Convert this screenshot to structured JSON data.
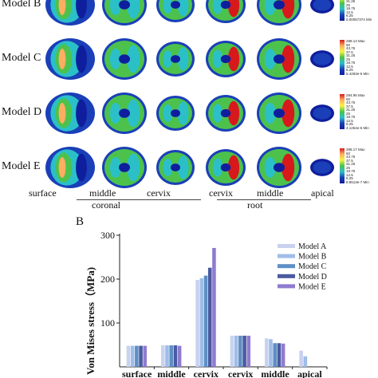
{
  "panel_a": {
    "rows": [
      {
        "label": "Model B",
        "max": "",
        "min": "0.00057374 Min"
      },
      {
        "label": "Model C",
        "max": "288.14 Max",
        "min": "5.4283e-5 Min"
      },
      {
        "label": "Model D",
        "max": "284.95 Max",
        "min": "4.1254e-6 Min"
      },
      {
        "label": "Model E",
        "max": "288.17 Max",
        "min": "8.8513e-7 Min"
      }
    ],
    "scale_ticks": [
      "50",
      "43.75",
      "37.5",
      "31.25",
      "25",
      "18.75",
      "12.5",
      "6.25"
    ],
    "columns": [
      "surface",
      "middle",
      "cervix",
      "cervix",
      "middle",
      "apical"
    ],
    "groups": [
      "coronal",
      "root"
    ],
    "colors": {
      "max": "#d7191c",
      "mid": "#fdae61",
      "green": "#4cc24c",
      "cyan": "#2bc0c8",
      "blue": "#1a3fb8",
      "navy": "#0f1e9c"
    }
  },
  "panel_b": {
    "label": "B"
  },
  "chart_data": {
    "type": "bar",
    "categories": [
      "surface",
      "middle",
      "cervix",
      "cervix",
      "middle",
      "apical"
    ],
    "series": [
      {
        "name": "Model A",
        "color": "#c8d2f0",
        "values": [
          48,
          49,
          198,
          71,
          65,
          37
        ]
      },
      {
        "name": "Model B",
        "color": "#9fbde8",
        "values": [
          48,
          49,
          202,
          71,
          63,
          24
        ]
      },
      {
        "name": "Model C",
        "color": "#5e8fc4",
        "values": [
          48,
          49,
          208,
          71,
          54,
          0
        ]
      },
      {
        "name": "Model D",
        "color": "#4a5aa0",
        "values": [
          48,
          49,
          226,
          71,
          54,
          0
        ]
      },
      {
        "name": "Model E",
        "color": "#8f7cd0",
        "values": [
          48,
          48,
          271,
          71,
          53,
          0
        ]
      }
    ],
    "title": "",
    "xlabel": "",
    "ylabel": "Von Mises stress（MPa)",
    "ylim": [
      0,
      300
    ],
    "yticks": [
      100,
      200,
      300
    ],
    "legend": "top-right",
    "grid": false
  }
}
